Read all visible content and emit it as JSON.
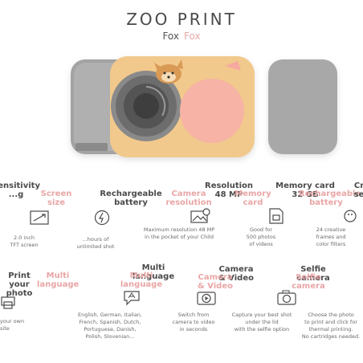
{
  "header": {
    "title": "ZOO PRINT",
    "model": "Fox",
    "model_pink": "Fox"
  },
  "colors": {
    "accent_pink": "#e9a6a6",
    "camera_yellow": "#f1c98a",
    "camera_grey": "#9b9b9b",
    "text_dark": "#4a4a4a"
  },
  "features_row1": [
    {
      "head": "Sensitivity",
      "head2": "...g",
      "pink": "Screen",
      "pink2": "size",
      "icon": "screen-size-icon",
      "desc": "2.0 inch\n...TFT screen"
    },
    {
      "head": "Rechargeable",
      "head2": "battery",
      "pink": "Rechargeable",
      "pink2": "battery",
      "icon": "battery-icon",
      "desc": "...rally hours of\nunlimited shot..."
    },
    {
      "head": "Resolution",
      "head2": "48 MP",
      "pink": "Camera",
      "pink2": "resolution",
      "icon": "resolution-icon",
      "desc": "...Maximum resolution 48 MP\n...the pocket of your Child"
    },
    {
      "head": "Memory card",
      "head2": "32 GB",
      "pink": "Memory",
      "pink2": "card",
      "icon": "memory-card-icon",
      "desc": "...Good for\n...500 photos\n...of Videos"
    },
    {
      "head": "Cr",
      "head2": "se",
      "pink": "Rechargeable",
      "pink2": "battery",
      "icon": "frames-icon",
      "desc": "24 creative\nframes and\ncolor filters"
    }
  ],
  "features_row2": [
    {
      "head": "Print",
      "head2": "your photo",
      "pink": "Multi",
      "pink2": "language",
      "icon": "print-icon",
      "desc": "...ur own\n...te"
    },
    {
      "head": "Multi",
      "head2": "language",
      "pink": "Multi",
      "pink2": "language",
      "icon": "language-icon",
      "desc": "English, German, Italian,\nFrench, Spanish, Dutch,\nPortuguese, Danish,\nPolish, Slovenian..."
    },
    {
      "head": "Camera",
      "head2": "& Video",
      "pink": "Camera",
      "pink2": "& Video",
      "icon": "video-icon",
      "desc": "Switch from\ncamera to video\nin seconds"
    },
    {
      "head": "Selfie",
      "head2": "camera",
      "pink": "Selfie",
      "pink2": "camera",
      "icon": "selfie-icon",
      "desc": "...Capture your best shot\n...under the lid\nwith the selfie option"
    },
    {
      "head": "",
      "head2": "",
      "pink": "",
      "pink2": "",
      "icon": "printer-icon",
      "desc": "Choose the photo\nto print and click for\nthermal printing.\nNo cartridges needed."
    }
  ],
  "descriptions": {
    "screen": "2.0 inch\nTFT screen",
    "battery": "...hours of\nunlimited shot",
    "resolution": "Maximum resolution 48 MP\nin the pocket of your Child",
    "memory": "Good for\n500 photos\nof videos",
    "frames": "24 creative\nframes and\ncolor filters",
    "print": "your own\nsite",
    "language": "English, German, Italian,\nFrench, Spanish, Dutch,\nPortuguese, Danish,\nPolish, Slovenian...",
    "video": "Switch from\ncamera to video\nin seconds",
    "selfie": "Capture your best shot\nunder the lid\nwith the selfie option",
    "printing": "Choose the photo\nto print and click for\nthermal printing.\nNo cartridges needed."
  }
}
